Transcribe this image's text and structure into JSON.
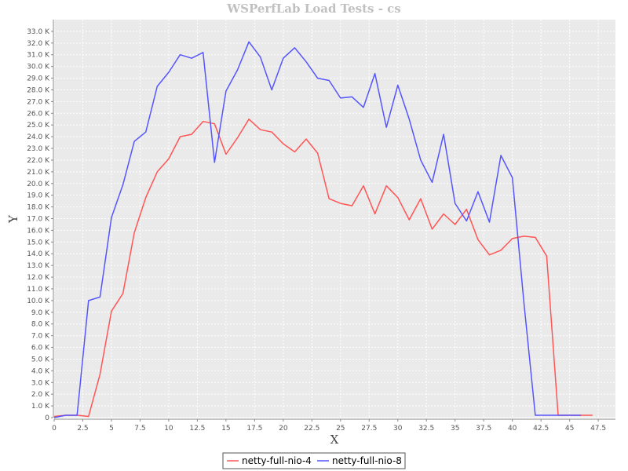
{
  "chart_data": {
    "type": "line",
    "title": "WSPerfLab Load Tests - cs",
    "xlabel": "X",
    "ylabel": "Y",
    "xlim": [
      0,
      49
    ],
    "ylim": [
      0,
      34000
    ],
    "x_ticks": [
      0,
      2.5,
      5,
      7.5,
      10,
      12.5,
      15,
      17.5,
      20,
      22.5,
      25,
      27.5,
      30,
      32.5,
      35,
      37.5,
      40,
      42.5,
      45,
      47.5
    ],
    "x_tick_labels": [
      "0",
      "2.5",
      "5",
      "7.5",
      "10",
      "12.5",
      "15",
      "17.5",
      "20",
      "22.5",
      "25",
      "27.5",
      "30",
      "32.5",
      "35",
      "37.5",
      "40",
      "42.5",
      "45",
      "47.5"
    ],
    "y_ticks": [
      0,
      1000,
      2000,
      3000,
      4000,
      5000,
      6000,
      7000,
      8000,
      9000,
      10000,
      11000,
      12000,
      13000,
      14000,
      15000,
      16000,
      17000,
      18000,
      19000,
      20000,
      21000,
      22000,
      23000,
      24000,
      25000,
      26000,
      27000,
      28000,
      29000,
      30000,
      31000,
      32000,
      33000
    ],
    "y_tick_labels": [
      "0",
      "1.0 K",
      "2.0 K",
      "3.0 K",
      "4.0 K",
      "5.0 K",
      "6.0 K",
      "7.0 K",
      "8.0 K",
      "9.0 K",
      "10.0 K",
      "11.0 K",
      "12.0 K",
      "13.0 K",
      "14.0 K",
      "15.0 K",
      "16.0 K",
      "17.0 K",
      "18.0 K",
      "19.0 K",
      "20.0 K",
      "21.0 K",
      "22.0 K",
      "23.0 K",
      "24.0 K",
      "25.0 K",
      "26.0 K",
      "27.0 K",
      "28.0 K",
      "29.0 K",
      "30.0 K",
      "31.0 K",
      "32.0 K",
      "33.0 K"
    ],
    "grid": true,
    "legend_position": "bottom",
    "series": [
      {
        "name": "netty-full-nio-4",
        "color": "#ff5555",
        "x": [
          0,
          1,
          2,
          3,
          4,
          5,
          6,
          7,
          8,
          9,
          10,
          11,
          12,
          13,
          14,
          15,
          16,
          17,
          18,
          19,
          20,
          21,
          22,
          23,
          24,
          25,
          26,
          27,
          28,
          29,
          30,
          31,
          32,
          33,
          34,
          35,
          36,
          37,
          38,
          39,
          40,
          41,
          42,
          43,
          44,
          45,
          46,
          47
        ],
        "values": [
          100,
          200,
          200,
          100,
          3700,
          9100,
          10600,
          15800,
          18800,
          21000,
          22100,
          24000,
          24200,
          25300,
          25100,
          22500,
          23900,
          25500,
          24600,
          24400,
          23400,
          22700,
          23800,
          22600,
          18700,
          18300,
          18100,
          19800,
          17400,
          19800,
          18800,
          16900,
          18700,
          16100,
          17400,
          16500,
          17800,
          15200,
          13900,
          14300,
          15300,
          15500,
          15400,
          13800,
          200,
          200,
          200,
          200
        ]
      },
      {
        "name": "netty-full-nio-8",
        "color": "#5555ff",
        "x": [
          0,
          1,
          2,
          3,
          4,
          5,
          6,
          7,
          8,
          9,
          10,
          11,
          12,
          13,
          14,
          15,
          16,
          17,
          18,
          19,
          20,
          21,
          22,
          23,
          24,
          25,
          26,
          27,
          28,
          29,
          30,
          31,
          32,
          33,
          34,
          35,
          36,
          37,
          38,
          39,
          40,
          41,
          42,
          43,
          44,
          45,
          46
        ],
        "values": [
          0,
          200,
          200,
          10000,
          10300,
          17100,
          19900,
          23600,
          24400,
          28300,
          29500,
          31000,
          30700,
          31200,
          21800,
          27900,
          29700,
          32100,
          30800,
          28000,
          30700,
          31600,
          30400,
          29000,
          28800,
          27300,
          27400,
          26500,
          29400,
          24800,
          28400,
          25500,
          22000,
          20100,
          24200,
          18300,
          16800,
          19300,
          16700,
          22400,
          20500,
          9900,
          200,
          200,
          200,
          200,
          200
        ]
      }
    ]
  }
}
